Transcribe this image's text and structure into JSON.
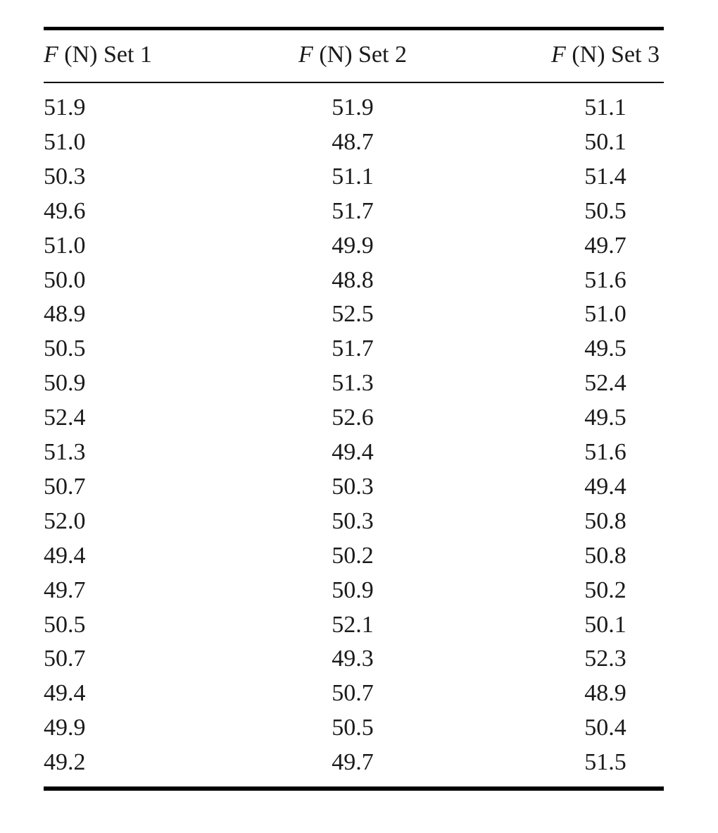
{
  "table": {
    "headers": [
      "F (N) Set 1",
      "F (N) Set 2",
      "F (N) Set 3"
    ],
    "rows": [
      [
        "51.9",
        "51.9",
        "51.1"
      ],
      [
        "51.0",
        "48.7",
        "50.1"
      ],
      [
        "50.3",
        "51.1",
        "51.4"
      ],
      [
        "49.6",
        "51.7",
        "50.5"
      ],
      [
        "51.0",
        "49.9",
        "49.7"
      ],
      [
        "50.0",
        "48.8",
        "51.6"
      ],
      [
        "48.9",
        "52.5",
        "51.0"
      ],
      [
        "50.5",
        "51.7",
        "49.5"
      ],
      [
        "50.9",
        "51.3",
        "52.4"
      ],
      [
        "52.4",
        "52.6",
        "49.5"
      ],
      [
        "51.3",
        "49.4",
        "51.6"
      ],
      [
        "50.7",
        "50.3",
        "49.4"
      ],
      [
        "52.0",
        "50.3",
        "50.8"
      ],
      [
        "49.4",
        "50.2",
        "50.8"
      ],
      [
        "49.7",
        "50.9",
        "50.2"
      ],
      [
        "50.5",
        "52.1",
        "50.1"
      ],
      [
        "50.7",
        "49.3",
        "52.3"
      ],
      [
        "49.4",
        "50.7",
        "48.9"
      ],
      [
        "49.9",
        "50.5",
        "50.4"
      ],
      [
        "49.2",
        "49.7",
        "51.5"
      ]
    ]
  }
}
